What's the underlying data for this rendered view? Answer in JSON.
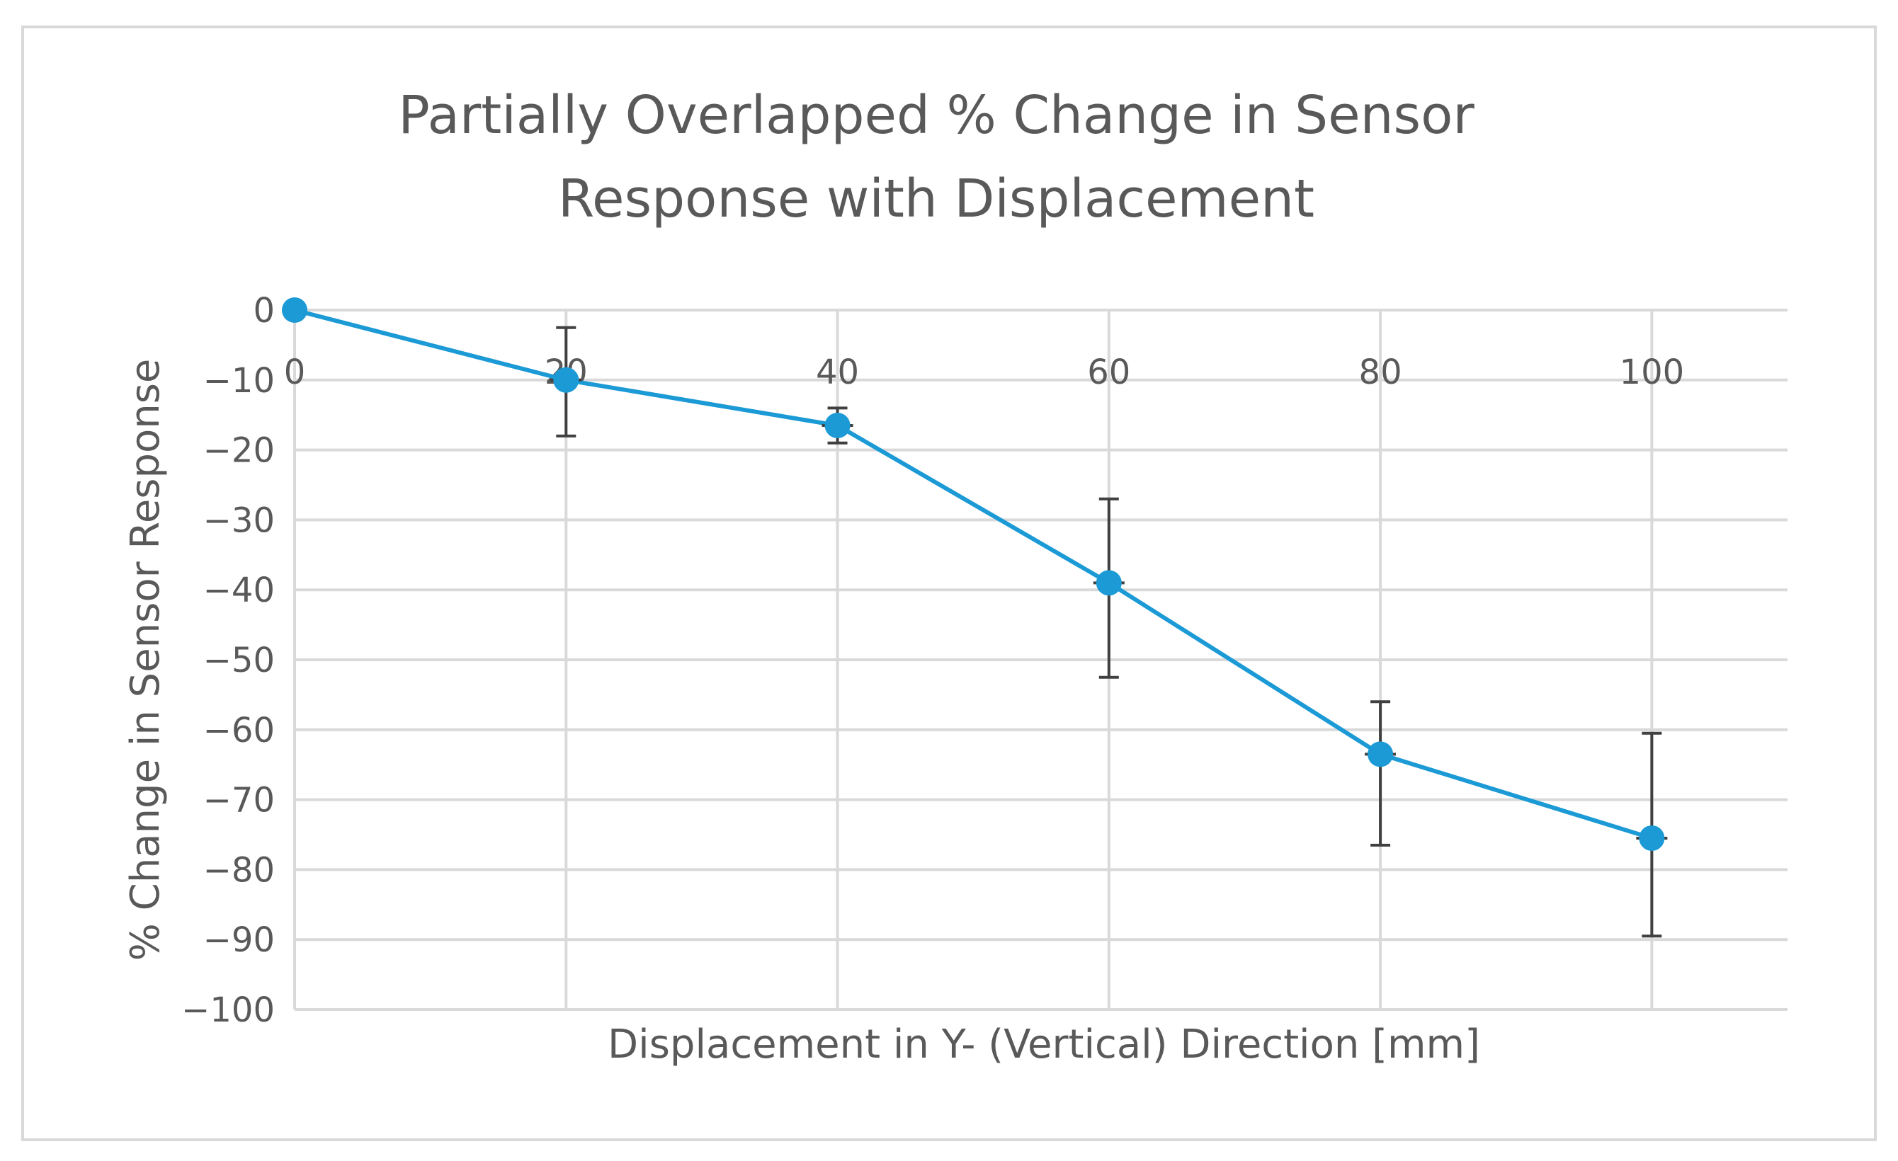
{
  "chart_data": {
    "type": "line",
    "title_lines": [
      "Partially Overlapped % Change in Sensor",
      "Response  with Displacement"
    ],
    "xlabel": "Displacement in Y- (Vertical) Direction [mm]",
    "ylabel": "% Change in Sensor Response",
    "x": [
      0,
      20,
      40,
      60,
      80,
      100
    ],
    "xlim": [
      0,
      110
    ],
    "ylim": [
      -100,
      0
    ],
    "y_ticks": [
      0,
      -10,
      -20,
      -30,
      -40,
      -50,
      -60,
      -70,
      -80,
      -90,
      -100
    ],
    "y_tick_labels": [
      "0",
      "−10",
      "−20",
      "−30",
      "−40",
      "−50",
      "−60",
      "−70",
      "−80",
      "−90",
      "−100"
    ],
    "x_ticks": [
      0,
      20,
      40,
      60,
      80,
      100
    ],
    "x_tick_labels": [
      "0",
      "20",
      "40",
      "60",
      "80",
      "100"
    ],
    "grid": true,
    "series": [
      {
        "name": "Partially Overlapped",
        "color": "#1b9ad6",
        "values": [
          0,
          -10,
          -16.5,
          -39,
          -63.5,
          -75.5
        ],
        "error_low": [
          0,
          -18,
          -19,
          -52.5,
          -76.5,
          -89.5
        ],
        "error_high": [
          0,
          -2.5,
          -14,
          -27,
          -56,
          -60.5
        ]
      }
    ]
  }
}
